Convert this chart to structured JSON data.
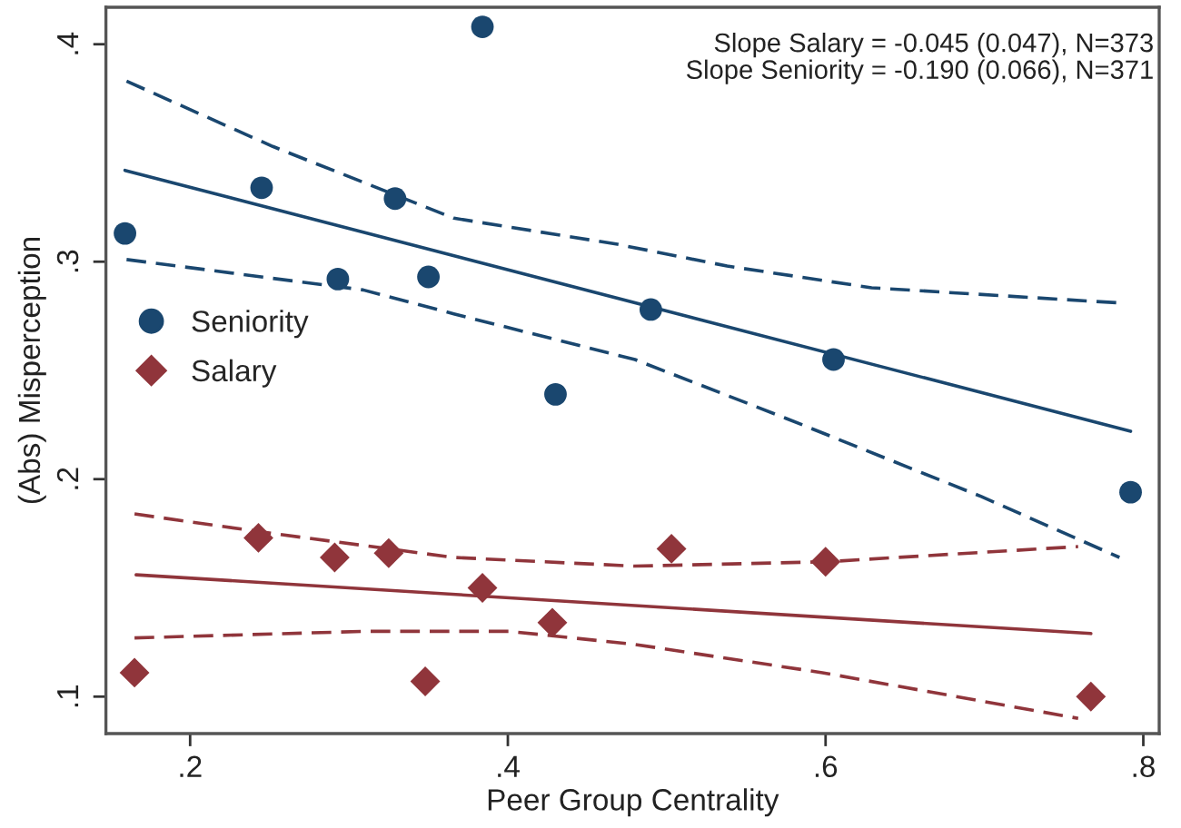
{
  "chart_data": {
    "type": "scatter",
    "xlabel": "Peer Group Centrality",
    "ylabel": "(Abs) Misperception",
    "annotations": [
      "Slope Salary = -0.045 (0.047), N=373",
      "Slope Seniority = -0.190 (0.066), N=371"
    ],
    "series": [
      {
        "name": "Seniority",
        "marker": "circle",
        "color": "#1a476f",
        "x": [
          0.159,
          0.245,
          0.329,
          0.293,
          0.35,
          0.384,
          0.43,
          0.49,
          0.605,
          0.792
        ],
        "values": [
          0.313,
          0.334,
          0.329,
          0.292,
          0.293,
          0.408,
          0.239,
          0.278,
          0.255,
          0.194
        ]
      },
      {
        "name": "Salary",
        "marker": "diamond",
        "color": "#90353b",
        "x": [
          0.165,
          0.243,
          0.291,
          0.325,
          0.348,
          0.384,
          0.428,
          0.503,
          0.6,
          0.767
        ],
        "values": [
          0.111,
          0.173,
          0.164,
          0.166,
          0.107,
          0.15,
          0.134,
          0.168,
          0.162,
          0.1
        ]
      },
      {
        "type": "line",
        "line_style": "solid",
        "color": "#1a476f",
        "x": [
          0.159,
          0.792
        ],
        "values": [
          0.342,
          0.222
        ]
      },
      {
        "type": "line",
        "line_style": "dashed",
        "color": "#1a476f",
        "x": [
          0.16,
          0.252,
          0.366,
          0.469,
          0.538,
          0.629,
          0.786
        ],
        "values": [
          0.383,
          0.353,
          0.32,
          0.308,
          0.298,
          0.288,
          0.281
        ]
      },
      {
        "type": "line",
        "line_style": "dashed",
        "color": "#1a476f",
        "x": [
          0.16,
          0.309,
          0.366,
          0.48,
          0.575,
          0.698,
          0.785
        ],
        "values": [
          0.301,
          0.287,
          0.276,
          0.255,
          0.228,
          0.192,
          0.164
        ]
      },
      {
        "type": "line",
        "line_style": "solid",
        "color": "#90353b",
        "x": [
          0.166,
          0.767
        ],
        "values": [
          0.156,
          0.129
        ]
      },
      {
        "type": "line",
        "line_style": "dashed",
        "color": "#90353b",
        "x": [
          0.165,
          0.252,
          0.366,
          0.48,
          0.6,
          0.759
        ],
        "values": [
          0.184,
          0.175,
          0.164,
          0.16,
          0.162,
          0.169
        ]
      },
      {
        "type": "line",
        "line_style": "dashed",
        "color": "#90353b",
        "x": [
          0.165,
          0.309,
          0.401,
          0.48,
          0.598,
          0.759
        ],
        "values": [
          0.127,
          0.13,
          0.13,
          0.124,
          0.111,
          0.09
        ]
      }
    ],
    "xlim": [
      0.147,
      0.81
    ],
    "ylim": [
      0.083,
      0.417
    ],
    "xticks": [
      {
        "value": 0.2,
        "label": ".2"
      },
      {
        "value": 0.4,
        "label": ".4"
      },
      {
        "value": 0.6,
        "label": ".6"
      },
      {
        "value": 0.8,
        "label": ".8"
      }
    ],
    "yticks": [
      {
        "value": 0.1,
        "label": ".1"
      },
      {
        "value": 0.2,
        "label": ".2"
      },
      {
        "value": 0.3,
        "label": ".3"
      },
      {
        "value": 0.4,
        "label": ".4"
      }
    ],
    "grid": false,
    "legend": "left"
  }
}
